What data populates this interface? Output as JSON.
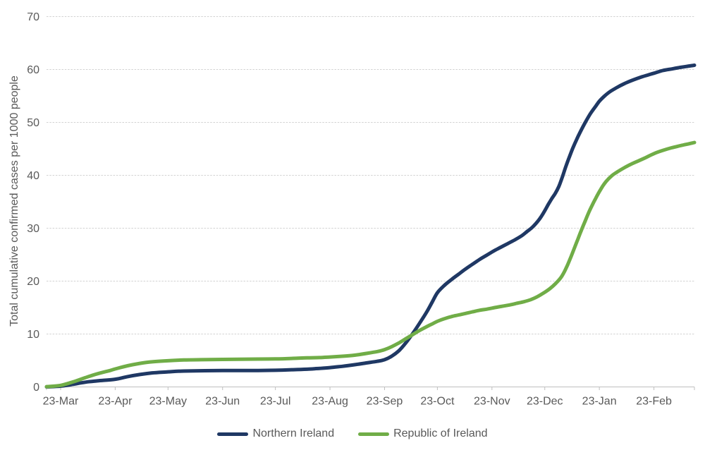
{
  "chart_data": {
    "type": "line",
    "title": "",
    "xlabel": "",
    "ylabel": "Total cumulative confirmed cases per 1000 people",
    "ylim": [
      0,
      70
    ],
    "y_ticks": [
      0,
      10,
      20,
      30,
      40,
      50,
      60,
      70
    ],
    "x_tick_labels": [
      "23-Mar",
      "23-Apr",
      "23-May",
      "23-Jun",
      "23-Jul",
      "23-Aug",
      "23-Sep",
      "23-Oct",
      "23-Nov",
      "23-Dec",
      "23-Jan",
      "23-Feb"
    ],
    "x_tick_days": [
      0,
      31,
      61,
      92,
      122,
      153,
      184,
      214,
      245,
      275,
      306,
      337
    ],
    "x_range_days": [
      -8,
      360
    ],
    "x_encoding": "days relative to first tick label 23-Mar",
    "grid": true,
    "legend_position": "bottom",
    "series": [
      {
        "name": "Northern Ireland",
        "color": "#1F3864",
        "points": [
          [
            -8,
            0.02
          ],
          [
            0,
            0.15
          ],
          [
            7,
            0.5
          ],
          [
            14,
            0.9
          ],
          [
            21,
            1.15
          ],
          [
            31,
            1.45
          ],
          [
            38,
            1.95
          ],
          [
            45,
            2.35
          ],
          [
            52,
            2.65
          ],
          [
            61,
            2.85
          ],
          [
            70,
            3.0
          ],
          [
            92,
            3.1
          ],
          [
            107,
            3.1
          ],
          [
            122,
            3.15
          ],
          [
            132,
            3.25
          ],
          [
            140,
            3.35
          ],
          [
            147,
            3.5
          ],
          [
            153,
            3.65
          ],
          [
            160,
            3.9
          ],
          [
            167,
            4.2
          ],
          [
            174,
            4.55
          ],
          [
            180,
            4.85
          ],
          [
            184,
            5.15
          ],
          [
            188,
            5.8
          ],
          [
            192,
            6.8
          ],
          [
            196,
            8.3
          ],
          [
            200,
            10.1
          ],
          [
            204,
            12.1
          ],
          [
            208,
            14.2
          ],
          [
            211,
            16.0
          ],
          [
            214,
            17.8
          ],
          [
            218,
            19.2
          ],
          [
            222,
            20.3
          ],
          [
            226,
            21.3
          ],
          [
            230,
            22.3
          ],
          [
            234,
            23.2
          ],
          [
            238,
            24.1
          ],
          [
            242,
            24.9
          ],
          [
            246,
            25.7
          ],
          [
            250,
            26.4
          ],
          [
            254,
            27.1
          ],
          [
            258,
            27.8
          ],
          [
            262,
            28.6
          ],
          [
            265,
            29.4
          ],
          [
            268,
            30.2
          ],
          [
            271,
            31.3
          ],
          [
            273,
            32.2
          ],
          [
            275,
            33.3
          ],
          [
            277,
            34.5
          ],
          [
            279,
            35.6
          ],
          [
            281,
            36.6
          ],
          [
            283,
            37.9
          ],
          [
            285,
            39.7
          ],
          [
            287,
            41.7
          ],
          [
            289,
            43.5
          ],
          [
            291,
            45.2
          ],
          [
            293,
            46.7
          ],
          [
            295,
            48.1
          ],
          [
            298,
            50.0
          ],
          [
            301,
            51.7
          ],
          [
            304,
            53.1
          ],
          [
            306,
            54.0
          ],
          [
            309,
            55.0
          ],
          [
            312,
            55.8
          ],
          [
            316,
            56.6
          ],
          [
            320,
            57.3
          ],
          [
            325,
            58.0
          ],
          [
            330,
            58.6
          ],
          [
            334,
            59.0
          ],
          [
            337,
            59.3
          ],
          [
            342,
            59.8
          ],
          [
            347,
            60.1
          ],
          [
            352,
            60.4
          ],
          [
            356,
            60.6
          ],
          [
            360,
            60.8
          ]
        ]
      },
      {
        "name": "Republic of Ireland",
        "color": "#70AD47",
        "points": [
          [
            -8,
            0.05
          ],
          [
            0,
            0.3
          ],
          [
            7,
            0.95
          ],
          [
            14,
            1.75
          ],
          [
            21,
            2.5
          ],
          [
            28,
            3.1
          ],
          [
            31,
            3.4
          ],
          [
            38,
            4.0
          ],
          [
            45,
            4.45
          ],
          [
            52,
            4.75
          ],
          [
            61,
            4.95
          ],
          [
            70,
            5.1
          ],
          [
            80,
            5.15
          ],
          [
            92,
            5.2
          ],
          [
            107,
            5.25
          ],
          [
            122,
            5.3
          ],
          [
            132,
            5.4
          ],
          [
            140,
            5.5
          ],
          [
            147,
            5.55
          ],
          [
            153,
            5.65
          ],
          [
            160,
            5.8
          ],
          [
            167,
            6.0
          ],
          [
            174,
            6.35
          ],
          [
            180,
            6.7
          ],
          [
            184,
            7.05
          ],
          [
            188,
            7.6
          ],
          [
            192,
            8.3
          ],
          [
            196,
            9.1
          ],
          [
            200,
            9.9
          ],
          [
            204,
            10.7
          ],
          [
            208,
            11.4
          ],
          [
            211,
            11.9
          ],
          [
            214,
            12.4
          ],
          [
            218,
            12.9
          ],
          [
            222,
            13.3
          ],
          [
            226,
            13.6
          ],
          [
            230,
            13.9
          ],
          [
            234,
            14.2
          ],
          [
            238,
            14.5
          ],
          [
            242,
            14.7
          ],
          [
            245,
            14.9
          ],
          [
            250,
            15.2
          ],
          [
            255,
            15.5
          ],
          [
            259,
            15.8
          ],
          [
            263,
            16.1
          ],
          [
            267,
            16.5
          ],
          [
            271,
            17.1
          ],
          [
            275,
            17.9
          ],
          [
            278,
            18.6
          ],
          [
            281,
            19.5
          ],
          [
            284,
            20.6
          ],
          [
            286,
            21.7
          ],
          [
            288,
            23.1
          ],
          [
            290,
            24.7
          ],
          [
            292,
            26.4
          ],
          [
            294,
            28.1
          ],
          [
            296,
            29.8
          ],
          [
            298,
            31.4
          ],
          [
            300,
            33.0
          ],
          [
            302,
            34.4
          ],
          [
            304,
            35.7
          ],
          [
            306,
            36.9
          ],
          [
            308,
            38.0
          ],
          [
            310,
            38.9
          ],
          [
            313,
            39.9
          ],
          [
            316,
            40.6
          ],
          [
            320,
            41.4
          ],
          [
            324,
            42.1
          ],
          [
            328,
            42.7
          ],
          [
            332,
            43.3
          ],
          [
            337,
            44.1
          ],
          [
            342,
            44.7
          ],
          [
            347,
            45.2
          ],
          [
            352,
            45.6
          ],
          [
            356,
            45.9
          ],
          [
            360,
            46.2
          ]
        ]
      }
    ]
  },
  "colors": {
    "text": "#595959",
    "gridline": "#D2D2D2",
    "axis": "#BFBFBF",
    "background": "#FFFFFF"
  }
}
